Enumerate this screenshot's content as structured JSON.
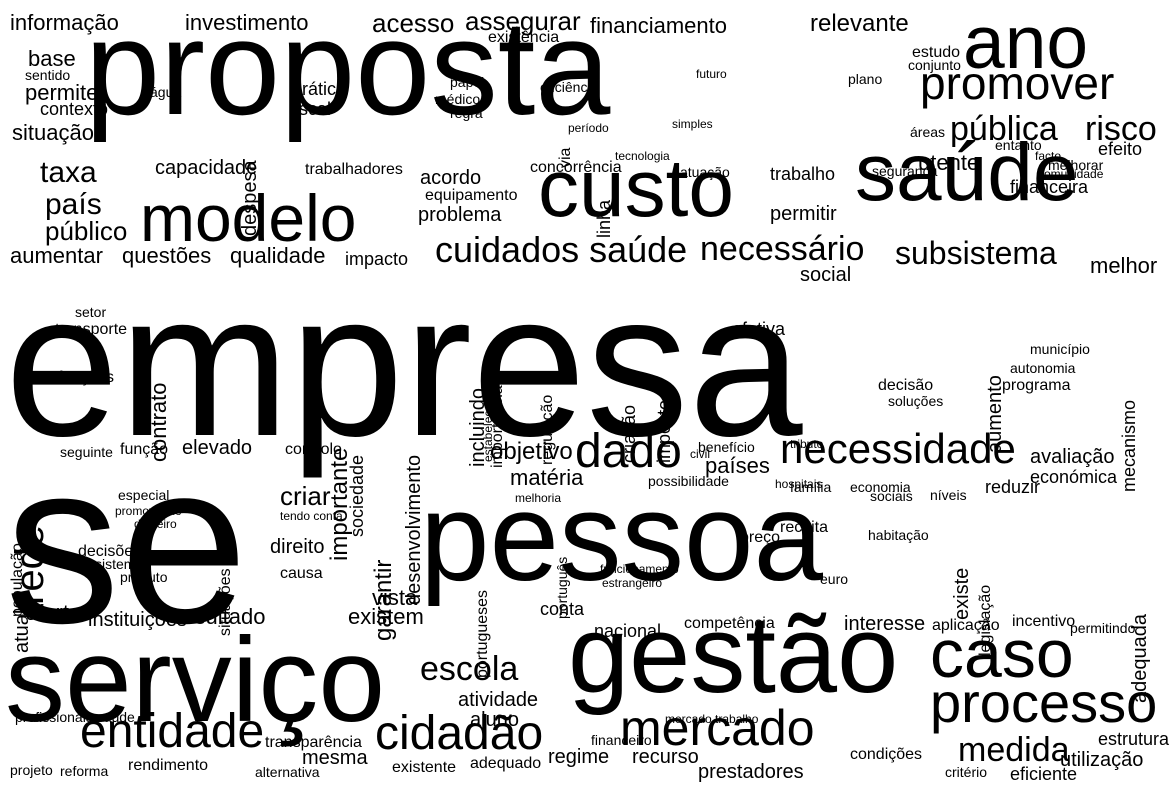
{
  "words": [
    "empresa",
    "se",
    "pessoa",
    "proposta",
    "serviço",
    "gestão",
    "ano",
    "saúde",
    "custo",
    "modelo",
    "caso",
    "processo",
    "mercado",
    "entidade",
    "cidadão",
    "necessidade",
    "dado",
    "promover",
    "pública",
    "risco",
    "cuidados saúde",
    "necessário",
    "subsistema",
    "medida",
    "escola",
    "criar",
    "direito",
    "garantir",
    "rede",
    "país",
    "taxa",
    "capacidade",
    "público",
    "aumentar",
    "questões",
    "qualidade",
    "impacto",
    "informação",
    "investimento",
    "acesso",
    "assegurar",
    "financiamento",
    "relevante",
    "base",
    "permite",
    "contexto",
    "situação",
    "sentido",
    "atual",
    "oferta",
    "instituições",
    "resultado",
    "existem",
    "vista",
    "conta",
    "mesma",
    "transparência",
    "regime",
    "recurso",
    "prestadores",
    "utilização",
    "efetiva",
    "prática",
    "fiscal",
    "água",
    "médico",
    "regra",
    "existência",
    "eficiência",
    "despesa",
    "trabalho",
    "permitir",
    "utente",
    "efeito",
    "acordo",
    "equipamento",
    "problema",
    "concorrência",
    "trabalhadores",
    "social",
    "melhor",
    "contrato",
    "transporte",
    "setor",
    "funções",
    "importante",
    "sociedade",
    "desenvolvimento",
    "incluindo",
    "importância",
    "criação",
    "imposto",
    "regulação",
    "objetivo",
    "matéria",
    "países",
    "avaliação",
    "económica",
    "reduzir",
    "adequada",
    "existe",
    "legislação",
    "aumento",
    "mecanismo",
    "decisão",
    "soluções",
    "programa",
    "município",
    "autonomia",
    "aluno",
    "atividade",
    "nacional",
    "competência",
    "interesse",
    "aplicação",
    "incentivo",
    "permitindo",
    "estrutura",
    "elevado",
    "controlo",
    "função",
    "seguinte",
    "população",
    "portugueses",
    "português",
    "funcionamento",
    "estrangeiro",
    "euro",
    "receita",
    "preço",
    "habitação",
    "condições",
    "eficiente",
    "critério",
    "existente",
    "adequado",
    "rendimento",
    "alternativa",
    "reforma",
    "projeto",
    "profissionais saúde",
    "mercado trabalho",
    "financeiro",
    "decisões",
    "sistema",
    "produto",
    "especial",
    "promovendo",
    "dinheiro",
    "situações",
    "causa",
    "tendo conta",
    "plano",
    "estudo",
    "conjunto",
    "áreas",
    "facto",
    "entanto",
    "melhorar",
    "comunidade",
    "segurança",
    "financeira",
    "atuação",
    "tecnologia",
    "linha",
    "via",
    "período",
    "simples",
    "futuro",
    "papel",
    "estabelecer",
    "possibilidade",
    "melhoria",
    "família",
    "economia",
    "sociais",
    "níveis",
    "hospitais",
    "benefício",
    "tributo",
    "civil"
  ],
  "colors": {
    "background": "#ffffff",
    "text": "#000000"
  }
}
